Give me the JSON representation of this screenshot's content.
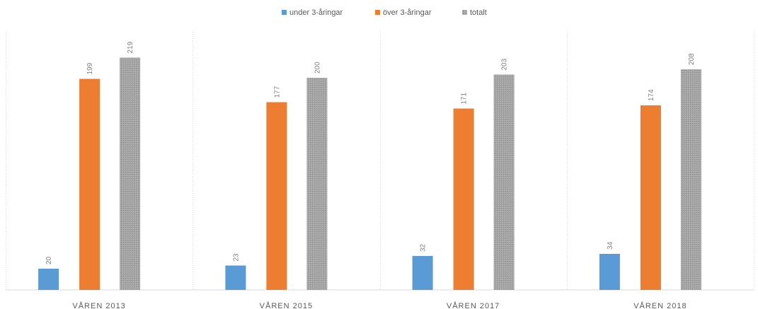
{
  "chart_data": {
    "type": "bar",
    "categories": [
      "VÅREN 2013",
      "VÅREN 2015",
      "VÅREN 2017",
      "VÅREN 2018"
    ],
    "series": [
      {
        "name": "under 3-åringar",
        "color": "#5b9bd5",
        "values": [
          20,
          23,
          32,
          34
        ],
        "labels": [
          "20",
          "23",
          "32",
          "34"
        ]
      },
      {
        "name": "över 3-åringar",
        "color": "#ed7d31",
        "values": [
          199,
          177,
          171,
          174
        ],
        "labels": [
          "199",
          "177",
          "171",
          "174"
        ]
      },
      {
        "name": "totalt",
        "color": "#a5a5a5",
        "values": [
          219,
          200,
          203,
          208
        ],
        "labels": [
          "219",
          "200",
          "203",
          "208"
        ]
      }
    ],
    "ylim": [
      0,
      250
    ],
    "legend_position": "top",
    "data_labels": "rotated",
    "category_separators": true
  }
}
